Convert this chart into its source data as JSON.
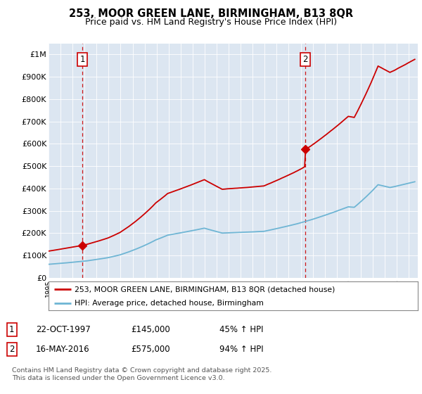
{
  "title": "253, MOOR GREEN LANE, BIRMINGHAM, B13 8QR",
  "subtitle": "Price paid vs. HM Land Registry's House Price Index (HPI)",
  "bg_color": "#dce6f1",
  "red_color": "#cc0000",
  "blue_color": "#6eb5d4",
  "dashed_color": "#cc0000",
  "p1_date": 1997.81,
  "p1_price": 145000,
  "p2_date": 2016.37,
  "p2_price": 575000,
  "legend_entries": [
    "253, MOOR GREEN LANE, BIRMINGHAM, B13 8QR (detached house)",
    "HPI: Average price, detached house, Birmingham"
  ],
  "ann1_date": "22-OCT-1997",
  "ann1_price": "£145,000",
  "ann1_hpi": "45% ↑ HPI",
  "ann2_date": "16-MAY-2016",
  "ann2_price": "£575,000",
  "ann2_hpi": "94% ↑ HPI",
  "copyright": "Contains HM Land Registry data © Crown copyright and database right 2025.\nThis data is licensed under the Open Government Licence v3.0.",
  "ylim": [
    0,
    1050000
  ],
  "yticks": [
    0,
    100000,
    200000,
    300000,
    400000,
    500000,
    600000,
    700000,
    800000,
    900000,
    1000000
  ],
  "ytick_labels": [
    "£0",
    "£100K",
    "£200K",
    "£300K",
    "£400K",
    "£500K",
    "£600K",
    "£700K",
    "£800K",
    "£900K",
    "£1M"
  ],
  "xstart": 1995.0,
  "xend": 2025.75
}
